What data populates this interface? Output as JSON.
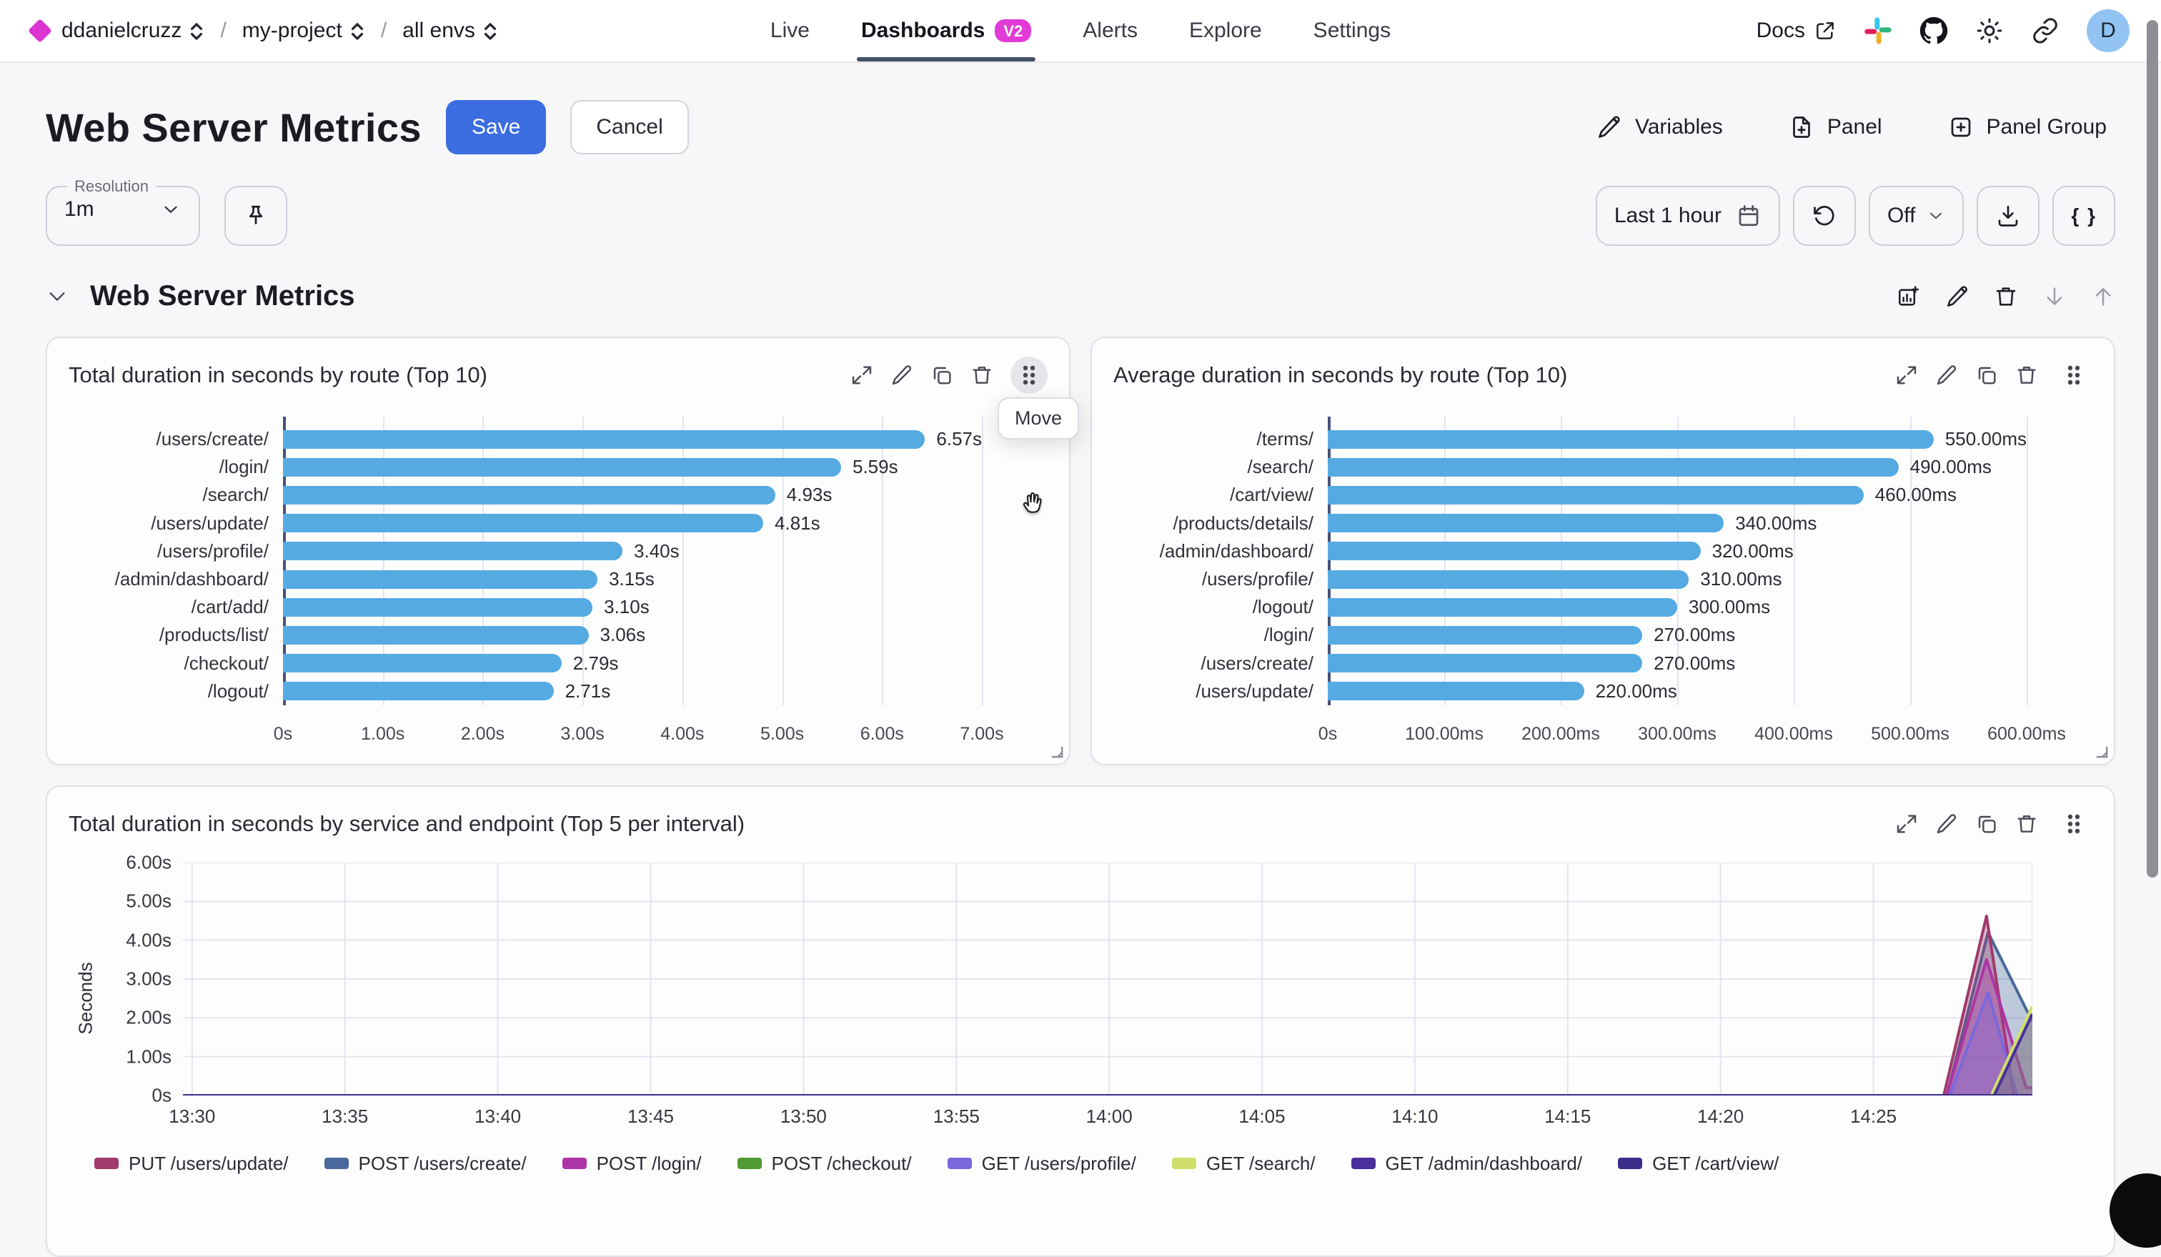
{
  "colors": {
    "accent_blue": "#3b6de0",
    "magenta": "#da35d2",
    "badge_magenta": "#e23ad6",
    "bar_blue": "#55aae1",
    "axis_line": "#47527a",
    "grid_line": "#e4e4f0",
    "tab_underline": "#45516b",
    "avatar_bg": "#92c3f2"
  },
  "topnav": {
    "org": "ddanielcruzz",
    "project": "my-project",
    "env": "all envs",
    "tabs": [
      {
        "label": "Live"
      },
      {
        "label": "Dashboards",
        "badge": "V2"
      },
      {
        "label": "Alerts"
      },
      {
        "label": "Explore"
      },
      {
        "label": "Settings"
      }
    ],
    "docs_label": "Docs",
    "avatar_letter": "D"
  },
  "header": {
    "title": "Web Server Metrics",
    "save_label": "Save",
    "cancel_label": "Cancel",
    "variables_label": "Variables",
    "panel_label": "Panel",
    "panel_group_label": "Panel Group"
  },
  "toolbar": {
    "resolution_label": "Resolution",
    "resolution_value": "1m",
    "time_range_label": "Last 1 hour",
    "auto_refresh_label": "Off",
    "braces_label": "{ }"
  },
  "section": {
    "title": "Web Server Metrics",
    "move_tooltip": "Move"
  },
  "chart_data": [
    {
      "type": "bar",
      "orientation": "horizontal",
      "title": "Total duration in seconds by route (Top 10)",
      "categories": [
        "/users/create/",
        "/login/",
        "/search/",
        "/users/update/",
        "/users/profile/",
        "/admin/dashboard/",
        "/cart/add/",
        "/products/list/",
        "/checkout/",
        "/logout/"
      ],
      "values": [
        6.57,
        5.59,
        4.93,
        4.81,
        3.4,
        3.15,
        3.1,
        3.06,
        2.79,
        2.71
      ],
      "value_labels": [
        "6.57s",
        "5.59s",
        "4.93s",
        "4.81s",
        "3.40s",
        "3.15s",
        "3.10s",
        "3.06s",
        "2.79s",
        "2.71s"
      ],
      "x_ticks": [
        "0s",
        "1.00s",
        "2.00s",
        "3.00s",
        "4.00s",
        "5.00s",
        "6.00s",
        "7.00s"
      ],
      "xmax": 7,
      "grid": true
    },
    {
      "type": "bar",
      "orientation": "horizontal",
      "title": "Average duration in seconds by route (Top 10)",
      "categories": [
        "/terms/",
        "/search/",
        "/cart/view/",
        "/products/details/",
        "/admin/dashboard/",
        "/users/profile/",
        "/logout/",
        "/login/",
        "/users/create/",
        "/users/update/"
      ],
      "values": [
        550,
        490,
        460,
        340,
        320,
        310,
        300,
        270,
        270,
        220
      ],
      "value_labels": [
        "550.00ms",
        "490.00ms",
        "460.00ms",
        "340.00ms",
        "320.00ms",
        "310.00ms",
        "300.00ms",
        "270.00ms",
        "270.00ms",
        "220.00ms"
      ],
      "x_ticks": [
        "0s",
        "100.00ms",
        "200.00ms",
        "300.00ms",
        "400.00ms",
        "500.00ms",
        "600.00ms"
      ],
      "xmax": 600,
      "grid": true
    },
    {
      "type": "area",
      "title": "Total duration in seconds by service and endpoint (Top 5 per interval)",
      "ylabel": "Seconds",
      "y_ticks": [
        "6.00s",
        "5.00s",
        "4.00s",
        "3.00s",
        "2.00s",
        "1.00s",
        "0s"
      ],
      "ymax": 6,
      "x_ticks": [
        "13:30",
        "13:35",
        "13:40",
        "13:45",
        "13:50",
        "13:55",
        "14:00",
        "14:05",
        "14:10",
        "14:15",
        "14:20",
        "14:25"
      ],
      "x_tick_minutes": [
        0,
        5,
        10,
        15,
        20,
        25,
        30,
        35,
        40,
        45,
        50,
        55
      ],
      "x_domain_minutes": [
        -0.3,
        60.2
      ],
      "grid": true,
      "legend_position": "bottom",
      "series": [
        {
          "name": "PUT /users/update/",
          "color": "#a13a6b",
          "points": [
            [
              -0.3,
              0
            ],
            [
              57.3,
              0
            ],
            [
              58.7,
              4.62
            ],
            [
              59.6,
              0
            ],
            [
              60.2,
              0
            ]
          ]
        },
        {
          "name": "POST /users/create/",
          "color": "#49689b",
          "points": [
            [
              -0.3,
              0
            ],
            [
              57.4,
              0
            ],
            [
              58.75,
              4.2
            ],
            [
              60.2,
              1.9
            ]
          ]
        },
        {
          "name": "POST /login/",
          "color": "#ad34a4",
          "points": [
            [
              -0.3,
              0
            ],
            [
              57.4,
              0
            ],
            [
              58.7,
              3.5
            ],
            [
              60.0,
              0.2
            ],
            [
              60.2,
              0.2
            ]
          ]
        },
        {
          "name": "POST /checkout/",
          "color": "#4f9a31",
          "points": [
            [
              -0.3,
              0
            ],
            [
              60.2,
              0
            ]
          ]
        },
        {
          "name": "GET /users/profile/",
          "color": "#7a68dd",
          "points": [
            [
              -0.3,
              0
            ],
            [
              57.5,
              0
            ],
            [
              58.75,
              2.65
            ],
            [
              59.7,
              0
            ],
            [
              60.2,
              0
            ]
          ]
        },
        {
          "name": "GET /search/",
          "color": "#cfdf69",
          "points": [
            [
              -0.3,
              0
            ],
            [
              58.85,
              0
            ],
            [
              60.2,
              2.3
            ]
          ]
        },
        {
          "name": "GET /admin/dashboard/",
          "color": "#4b2f9d",
          "points": [
            [
              -0.3,
              0
            ],
            [
              58.95,
              0
            ],
            [
              60.2,
              2.1
            ]
          ]
        },
        {
          "name": "GET /cart/view/",
          "color": "#3c2d89",
          "points": [
            [
              -0.3,
              0
            ],
            [
              60.2,
              0
            ]
          ]
        }
      ],
      "draw_order": [
        1,
        0,
        2,
        4,
        5,
        6,
        3,
        7
      ]
    }
  ]
}
